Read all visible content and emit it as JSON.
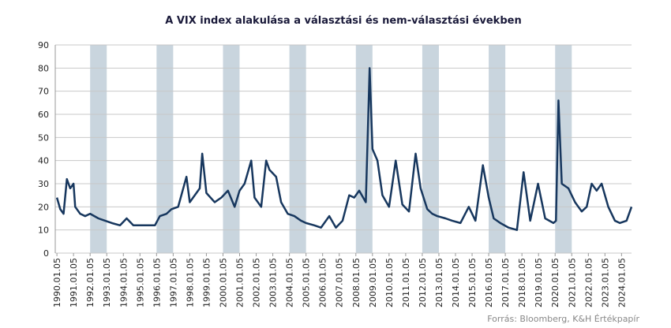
{
  "chart_data": {
    "type": "line",
    "title": "A VIX index alakulása a választási és nem-választási években",
    "source": "Forrás: Bloomberg, K&H Értékpapír",
    "x": [
      1990.0,
      1990.2,
      1990.4,
      1990.6,
      1990.8,
      1991.0,
      1991.1,
      1991.4,
      1991.7,
      1992.0,
      1992.5,
      1992.9,
      1993.3,
      1993.8,
      1994.2,
      1994.6,
      1995.0,
      1995.5,
      1995.9,
      1996.2,
      1996.6,
      1996.9,
      1997.3,
      1997.8,
      1998.0,
      1998.6,
      1998.75,
      1999.0,
      1999.5,
      1999.9,
      2000.3,
      2000.7,
      2001.0,
      2001.3,
      2001.7,
      2001.9,
      2002.3,
      2002.6,
      2002.8,
      2003.2,
      2003.5,
      2003.9,
      2004.3,
      2004.7,
      2005.0,
      2005.5,
      2005.9,
      2006.4,
      2006.8,
      2007.2,
      2007.6,
      2007.9,
      2008.2,
      2008.6,
      2008.83,
      2009.0,
      2009.3,
      2009.6,
      2010.0,
      2010.4,
      2010.8,
      2011.2,
      2011.6,
      2011.9,
      2012.3,
      2012.6,
      2012.9,
      2013.4,
      2013.8,
      2014.3,
      2014.8,
      2015.2,
      2015.65,
      2016.0,
      2016.3,
      2016.7,
      2017.2,
      2017.7,
      2018.1,
      2018.5,
      2018.97,
      2019.4,
      2019.9,
      2020.05,
      2020.2,
      2020.4,
      2020.8,
      2021.2,
      2021.6,
      2021.9,
      2022.2,
      2022.5,
      2022.8,
      2023.2,
      2023.6,
      2023.9,
      2024.3,
      2024.6
    ],
    "series": [
      {
        "name": "VIX",
        "color": "#17375e",
        "values": [
          24,
          19,
          17,
          32,
          28,
          30,
          20,
          17,
          16,
          17,
          15,
          14,
          13,
          12,
          15,
          12,
          12,
          12,
          12,
          16,
          17,
          19,
          20,
          33,
          22,
          28,
          43,
          26,
          22,
          24,
          27,
          20,
          27,
          30,
          40,
          24,
          20,
          40,
          36,
          33,
          22,
          17,
          16,
          14,
          13,
          12,
          11,
          16,
          11,
          14,
          25,
          24,
          27,
          22,
          80,
          45,
          40,
          25,
          20,
          40,
          21,
          18,
          43,
          28,
          19,
          17,
          16,
          15,
          14,
          13,
          20,
          14,
          38,
          24,
          15,
          13,
          11,
          10,
          35,
          14,
          30,
          15,
          13,
          14,
          66,
          30,
          28,
          22,
          18,
          20,
          30,
          27,
          30,
          20,
          14,
          13,
          14,
          20
        ]
      }
    ],
    "highlight_periods": [
      [
        1992,
        1993
      ],
      [
        1996,
        1997
      ],
      [
        2000,
        2001
      ],
      [
        2004,
        2005
      ],
      [
        2008,
        2009
      ],
      [
        2012,
        2013
      ],
      [
        2016,
        2017
      ],
      [
        2020,
        2021
      ]
    ],
    "highlight_color": "#c9d5de",
    "xlim": [
      1989.9,
      2024.6
    ],
    "xticks": [
      {
        "value": 1990,
        "label": "1990.01.05"
      },
      {
        "value": 1991,
        "label": "1991.01.05"
      },
      {
        "value": 1992,
        "label": "1992.01.05"
      },
      {
        "value": 1993,
        "label": "1993.01.05"
      },
      {
        "value": 1994,
        "label": "1994.01.05"
      },
      {
        "value": 1995,
        "label": "1995.01.05"
      },
      {
        "value": 1996,
        "label": "1996.01.05"
      },
      {
        "value": 1997,
        "label": "1997.01.05"
      },
      {
        "value": 1998,
        "label": "1998.01.05"
      },
      {
        "value": 1999,
        "label": "1999.01.05"
      },
      {
        "value": 2000,
        "label": "2000.01.05"
      },
      {
        "value": 2001,
        "label": "2001.01.05"
      },
      {
        "value": 2002,
        "label": "2002.01.05"
      },
      {
        "value": 2003,
        "label": "2003.01.05"
      },
      {
        "value": 2004,
        "label": "2004.01.05"
      },
      {
        "value": 2005,
        "label": "2005.01.05"
      },
      {
        "value": 2006,
        "label": "2006.01.05"
      },
      {
        "value": 2007,
        "label": "2007.01.05"
      },
      {
        "value": 2008,
        "label": "2008.01.05"
      },
      {
        "value": 2009,
        "label": "2009.01.05"
      },
      {
        "value": 2010,
        "label": "2010.01.05"
      },
      {
        "value": 2011,
        "label": "2011.01.05"
      },
      {
        "value": 2012,
        "label": "2012.01.05"
      },
      {
        "value": 2013,
        "label": "2013.01.05"
      },
      {
        "value": 2014,
        "label": "2014.01.05"
      },
      {
        "value": 2015,
        "label": "2015.01.05"
      },
      {
        "value": 2016,
        "label": "2016.01.05"
      },
      {
        "value": 2017,
        "label": "2017.01.05"
      },
      {
        "value": 2018,
        "label": "2018.01.05"
      },
      {
        "value": 2019,
        "label": "2019.01.05"
      },
      {
        "value": 2020,
        "label": "2020.01.05"
      },
      {
        "value": 2021,
        "label": "2021.01.05"
      },
      {
        "value": 2022,
        "label": "2022.01.05"
      },
      {
        "value": 2023,
        "label": "2023.01.05"
      },
      {
        "value": 2024,
        "label": "2024.01.05"
      }
    ],
    "ylim": [
      0,
      90
    ],
    "yticks": [
      0,
      10,
      20,
      30,
      40,
      50,
      60,
      70,
      80,
      90
    ],
    "grid": true
  }
}
